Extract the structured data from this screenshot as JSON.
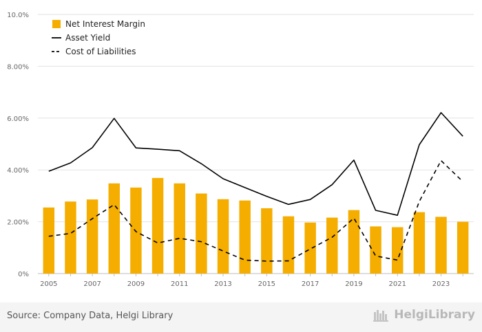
{
  "chart_data": {
    "type": "bar",
    "x": [
      "2005",
      "2006",
      "2007",
      "2008",
      "2009",
      "2010",
      "2011",
      "2012",
      "2013",
      "2014",
      "2015",
      "2016",
      "2017",
      "2018",
      "2019",
      "2020",
      "2021",
      "2022",
      "2023",
      "2024"
    ],
    "x_tick_labels": [
      "2005",
      "2007",
      "2009",
      "2011",
      "2013",
      "2015",
      "2017",
      "2019",
      "2021",
      "2023"
    ],
    "y_tick_labels": [
      "0%",
      "2.00%",
      "4.00%",
      "6.00%",
      "8.00%",
      "10.0%"
    ],
    "ylim": [
      0,
      10
    ],
    "title": "",
    "xlabel": "",
    "ylabel": "",
    "grid": true,
    "legend_position": "top-left",
    "series": [
      {
        "name": "Net Interest Margin",
        "kind": "bar",
        "color": "#f5ad00",
        "values": [
          2.55,
          2.78,
          2.86,
          3.48,
          3.32,
          3.69,
          3.48,
          3.09,
          2.87,
          2.82,
          2.52,
          2.21,
          1.97,
          2.16,
          2.45,
          1.82,
          1.79,
          2.37,
          2.19,
          2.0
        ]
      },
      {
        "name": "Asset Yield",
        "kind": "line",
        "color": "#000000",
        "dash": "solid",
        "values": [
          3.95,
          4.27,
          4.86,
          5.99,
          4.85,
          4.8,
          4.74,
          4.24,
          3.66,
          3.32,
          2.98,
          2.67,
          2.86,
          3.43,
          4.38,
          2.44,
          2.25,
          4.97,
          6.21,
          5.3
        ]
      },
      {
        "name": "Cost of Liabilities",
        "kind": "line",
        "color": "#000000",
        "dash": "dashed",
        "values": [
          1.44,
          1.55,
          2.12,
          2.66,
          1.62,
          1.18,
          1.36,
          1.23,
          0.87,
          0.52,
          0.48,
          0.49,
          0.95,
          1.4,
          2.14,
          0.68,
          0.52,
          2.78,
          4.36,
          3.55
        ]
      }
    ]
  },
  "footer": {
    "source": "Source: Company Data, Helgi Library",
    "brand": "HelgiLibrary"
  }
}
